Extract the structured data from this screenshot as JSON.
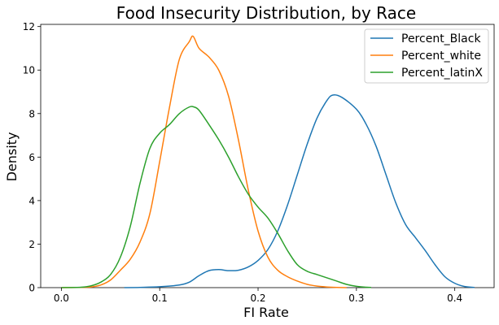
{
  "chart_data": {
    "type": "line",
    "title": "Food Insecurity Distribution, by Race",
    "xlabel": "FI Rate",
    "ylabel": "Density",
    "xlim": [
      -0.021,
      0.44
    ],
    "ylim": [
      0,
      12.1
    ],
    "xticks": [
      0.0,
      0.1,
      0.2,
      0.3,
      0.4
    ],
    "xtick_labels": [
      "0.0",
      "0.1",
      "0.2",
      "0.3",
      "0.4"
    ],
    "yticks": [
      0,
      2,
      4,
      6,
      8,
      10,
      12
    ],
    "ytick_labels": [
      "0",
      "2",
      "4",
      "6",
      "8",
      "10",
      "12"
    ],
    "grid": false,
    "legend_position": "top-right",
    "series": [
      {
        "name": "Percent_Black",
        "color": "#1f77b4",
        "points": [
          [
            0.064,
            0
          ],
          [
            0.08,
            0.01
          ],
          [
            0.1,
            0.04
          ],
          [
            0.12,
            0.12
          ],
          [
            0.13,
            0.25
          ],
          [
            0.14,
            0.55
          ],
          [
            0.15,
            0.78
          ],
          [
            0.16,
            0.83
          ],
          [
            0.17,
            0.78
          ],
          [
            0.18,
            0.8
          ],
          [
            0.19,
            0.95
          ],
          [
            0.2,
            1.25
          ],
          [
            0.21,
            1.75
          ],
          [
            0.22,
            2.6
          ],
          [
            0.23,
            3.8
          ],
          [
            0.24,
            5.2
          ],
          [
            0.25,
            6.6
          ],
          [
            0.26,
            7.8
          ],
          [
            0.27,
            8.6
          ],
          [
            0.276,
            8.85
          ],
          [
            0.285,
            8.75
          ],
          [
            0.3,
            8.2
          ],
          [
            0.31,
            7.5
          ],
          [
            0.32,
            6.5
          ],
          [
            0.33,
            5.2
          ],
          [
            0.34,
            3.9
          ],
          [
            0.35,
            2.9
          ],
          [
            0.36,
            2.3
          ],
          [
            0.37,
            1.7
          ],
          [
            0.38,
            1.05
          ],
          [
            0.39,
            0.5
          ],
          [
            0.4,
            0.2
          ],
          [
            0.41,
            0.05
          ],
          [
            0.42,
            0.01
          ]
        ]
      },
      {
        "name": "Percent_white",
        "color": "#ff7f0e",
        "points": [
          [
            0.0,
            0
          ],
          [
            0.02,
            0.01
          ],
          [
            0.03,
            0.03
          ],
          [
            0.04,
            0.12
          ],
          [
            0.05,
            0.35
          ],
          [
            0.06,
            0.8
          ],
          [
            0.07,
            1.3
          ],
          [
            0.08,
            2.1
          ],
          [
            0.09,
            3.4
          ],
          [
            0.1,
            5.8
          ],
          [
            0.11,
            8.3
          ],
          [
            0.12,
            10.5
          ],
          [
            0.13,
            11.3
          ],
          [
            0.134,
            11.55
          ],
          [
            0.14,
            11.0
          ],
          [
            0.15,
            10.6
          ],
          [
            0.16,
            10.0
          ],
          [
            0.17,
            8.8
          ],
          [
            0.18,
            6.8
          ],
          [
            0.19,
            4.5
          ],
          [
            0.2,
            2.6
          ],
          [
            0.21,
            1.4
          ],
          [
            0.22,
            0.8
          ],
          [
            0.23,
            0.5
          ],
          [
            0.24,
            0.3
          ],
          [
            0.25,
            0.15
          ],
          [
            0.26,
            0.07
          ],
          [
            0.27,
            0.03
          ],
          [
            0.28,
            0.01
          ],
          [
            0.29,
            0
          ]
        ]
      },
      {
        "name": "Percent_latinX",
        "color": "#2ca02c",
        "points": [
          [
            0.0,
            0
          ],
          [
            0.02,
            0.02
          ],
          [
            0.03,
            0.08
          ],
          [
            0.04,
            0.25
          ],
          [
            0.05,
            0.6
          ],
          [
            0.06,
            1.4
          ],
          [
            0.07,
            2.8
          ],
          [
            0.08,
            4.8
          ],
          [
            0.09,
            6.4
          ],
          [
            0.1,
            7.1
          ],
          [
            0.11,
            7.5
          ],
          [
            0.12,
            8.0
          ],
          [
            0.13,
            8.3
          ],
          [
            0.135,
            8.3
          ],
          [
            0.14,
            8.15
          ],
          [
            0.15,
            7.5
          ],
          [
            0.16,
            6.8
          ],
          [
            0.17,
            6.0
          ],
          [
            0.18,
            5.1
          ],
          [
            0.19,
            4.3
          ],
          [
            0.2,
            3.7
          ],
          [
            0.21,
            3.2
          ],
          [
            0.22,
            2.5
          ],
          [
            0.23,
            1.7
          ],
          [
            0.24,
            1.05
          ],
          [
            0.25,
            0.75
          ],
          [
            0.26,
            0.6
          ],
          [
            0.27,
            0.45
          ],
          [
            0.28,
            0.3
          ],
          [
            0.29,
            0.15
          ],
          [
            0.3,
            0.06
          ],
          [
            0.31,
            0.02
          ],
          [
            0.315,
            0.01
          ]
        ]
      }
    ]
  }
}
